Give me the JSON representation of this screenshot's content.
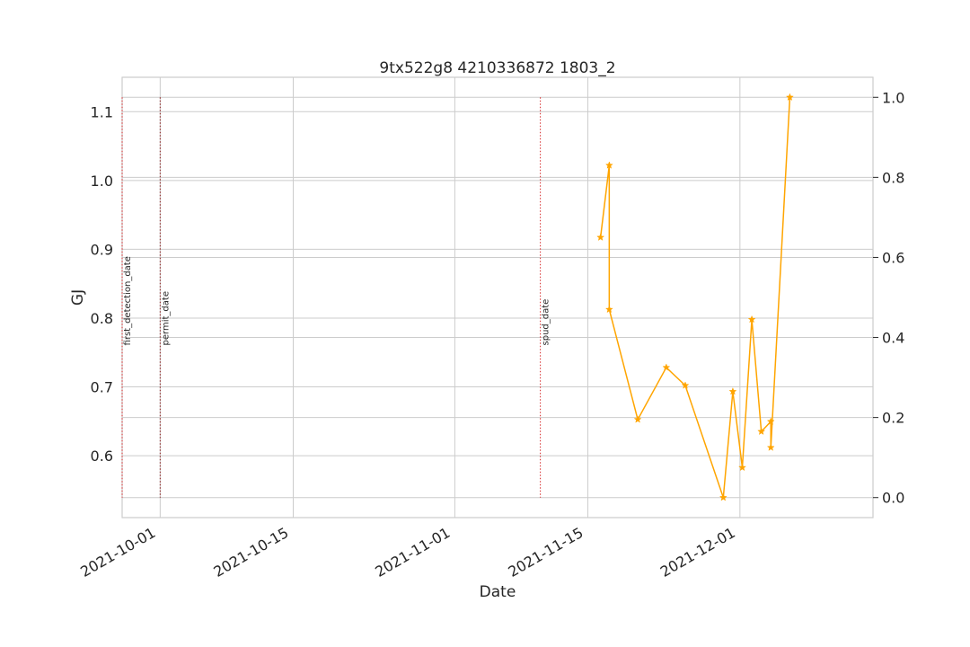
{
  "chart_data": {
    "type": "line",
    "title": "9tx522g8 4210336872 1803_2",
    "xlabel": "Date",
    "ylabel_left": "GJ",
    "ylabel_color": "#1f77b4",
    "left_axis": {
      "ylim": [
        0.51,
        1.15
      ],
      "ticks": [
        0.6,
        0.7,
        0.8,
        0.9,
        1.0,
        1.1
      ],
      "tick_labels": [
        "0.6",
        "0.7",
        "0.8",
        "0.9",
        "1.0",
        "1.1"
      ]
    },
    "right_axis": {
      "ylim": [
        -0.05,
        1.05
      ],
      "ticks": [
        0.0,
        0.2,
        0.4,
        0.6,
        0.8,
        1.0
      ],
      "tick_labels": [
        "0.0",
        "0.2",
        "0.4",
        "0.6",
        "0.8",
        "1.0"
      ]
    },
    "x_range": [
      "2021-09-27",
      "2021-12-15"
    ],
    "x_ticks": [
      "2021-10-01",
      "2021-10-15",
      "2021-11-01",
      "2021-11-15",
      "2021-12-01"
    ],
    "grid": true,
    "events": [
      {
        "label": "first_detection_date",
        "date": "2021-09-27",
        "color": "#d62728"
      },
      {
        "label": "permit_date",
        "date": "2021-10-01",
        "color": "#8c1c1c"
      },
      {
        "label": "spud_date",
        "date": "2021-11-10",
        "color": "#d62728"
      }
    ],
    "series": [
      {
        "axis": "right",
        "color": "#ffa500",
        "marker": "star",
        "points": [
          {
            "x": "2021-11-16 08:00",
            "y": 0.65
          },
          {
            "x": "2021-11-17 06:00",
            "y": 0.83
          },
          {
            "x": "2021-11-17 06:00",
            "y": 0.47
          },
          {
            "x": "2021-11-20 06:00",
            "y": 0.195
          },
          {
            "x": "2021-11-23 06:00",
            "y": 0.325
          },
          {
            "x": "2021-11-25 06:00",
            "y": 0.28
          },
          {
            "x": "2021-11-29 06:00",
            "y": 0.0
          },
          {
            "x": "2021-11-30 06:00",
            "y": 0.265
          },
          {
            "x": "2021-12-01 06:00",
            "y": 0.075
          },
          {
            "x": "2021-12-02 06:00",
            "y": 0.445
          },
          {
            "x": "2021-12-03 06:00",
            "y": 0.165
          },
          {
            "x": "2021-12-04 06:00",
            "y": 0.19
          },
          {
            "x": "2021-12-04 06:00",
            "y": 0.125
          },
          {
            "x": "2021-12-06 06:00",
            "y": 1.0
          }
        ]
      }
    ]
  }
}
